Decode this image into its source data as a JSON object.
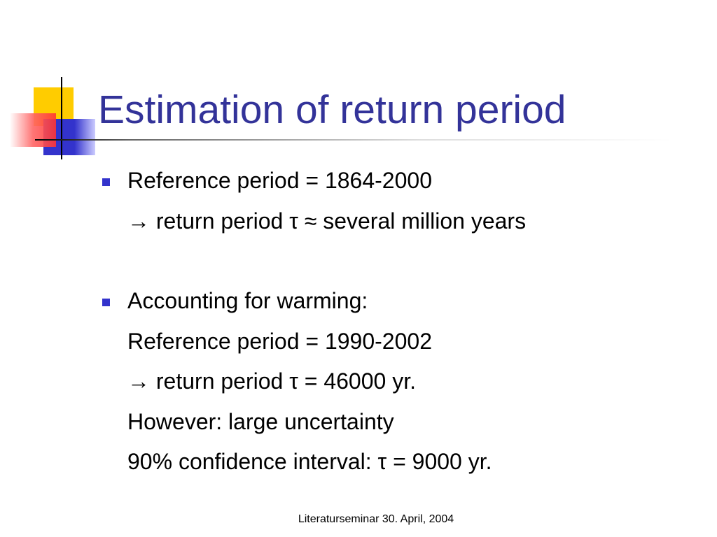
{
  "title": "Estimation of return period",
  "bullets": [
    {
      "lines": [
        "Reference period = 1864-2000",
        "→ return period τ ≈ several million years"
      ]
    },
    {
      "lines": [
        "Accounting for warming:",
        "Reference period = 1990-2002",
        "→ return period τ = 46000 yr.",
        "However: large uncertainty",
        "90% confidence interval: τ = 9000 yr."
      ]
    }
  ],
  "footer": "Literaturseminar 30. April, 2004"
}
